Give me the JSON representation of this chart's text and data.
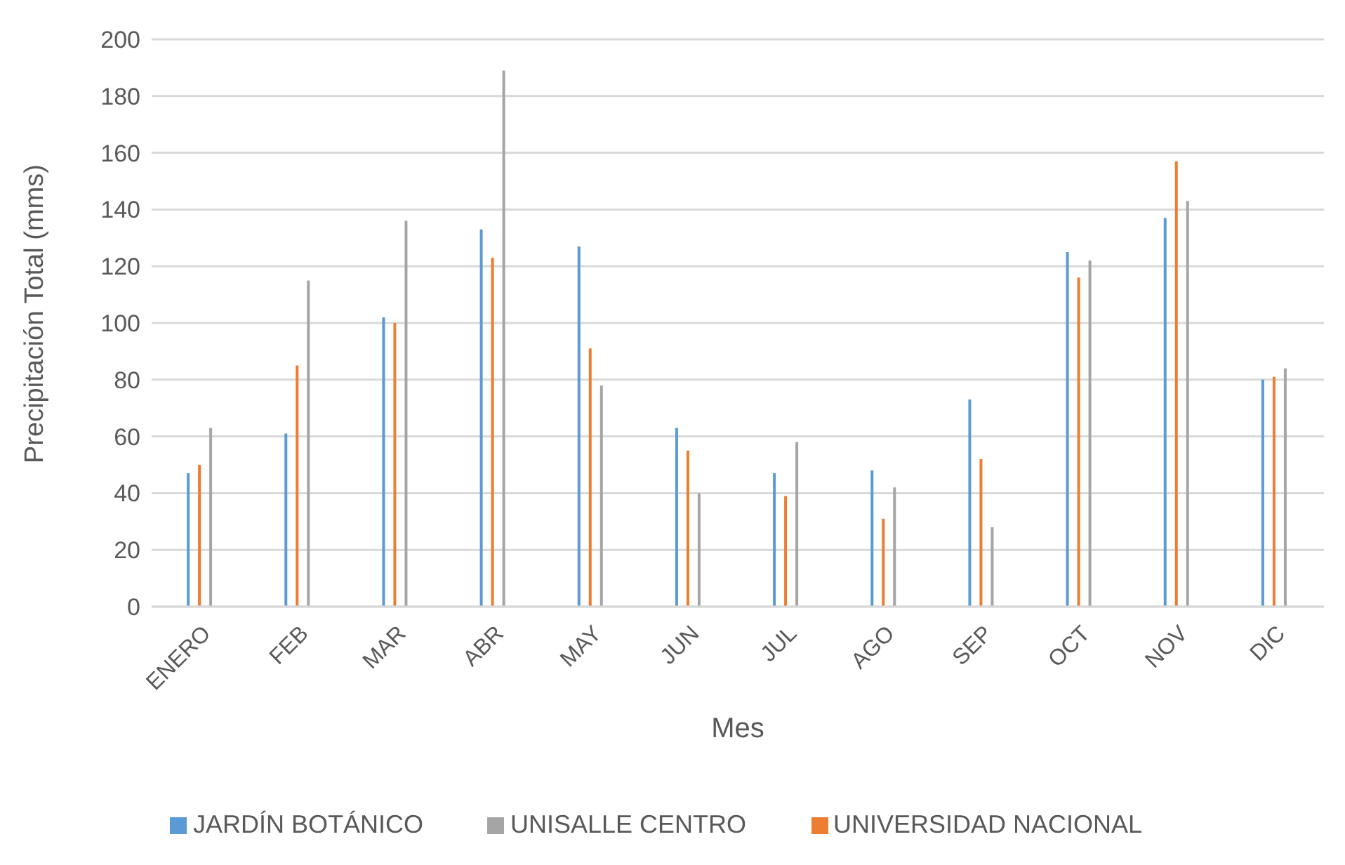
{
  "chart_data": {
    "type": "bar",
    "xlabel": "Mes",
    "ylabel": "Precipitación Total (mms)",
    "categories": [
      "ENERO",
      "FEB",
      "MAR",
      "ABR",
      "MAY",
      "JUN",
      "JUL",
      "AGO",
      "SEP",
      "OCT",
      "NOV",
      "DIC"
    ],
    "series": [
      {
        "name": "JARDÍN BOTÁNICO",
        "color": "#5b9bd5",
        "values": [
          47,
          61,
          102,
          133,
          127,
          63,
          47,
          48,
          73,
          125,
          137,
          80
        ]
      },
      {
        "name": "UNIVERSIDAD NACIONAL",
        "color": "#ed7d31",
        "values": [
          50,
          85,
          100,
          123,
          91,
          55,
          39,
          31,
          52,
          116,
          157,
          81
        ]
      },
      {
        "name": "UNISALLE CENTRO",
        "color": "#a5a5a5",
        "values": [
          63,
          115,
          136,
          189,
          78,
          40,
          58,
          42,
          28,
          122,
          143,
          84
        ]
      }
    ],
    "ylim": [
      0,
      200
    ],
    "yticks": [
      0,
      20,
      40,
      60,
      80,
      100,
      120,
      140,
      160,
      180,
      200
    ],
    "grid": "y",
    "legend": "bottom"
  }
}
